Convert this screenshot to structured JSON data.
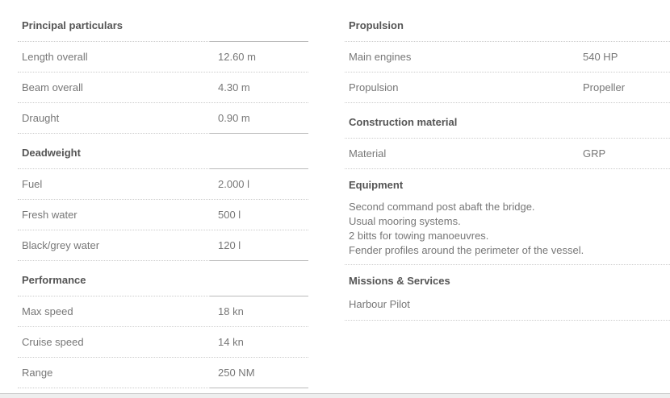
{
  "left": [
    {
      "title": "Principal particulars",
      "rows": [
        [
          "Length overall",
          "12.60 m"
        ],
        [
          "Beam overall",
          "4.30 m"
        ],
        [
          "Draught",
          "0.90 m"
        ]
      ]
    },
    {
      "title": "Deadweight",
      "rows": [
        [
          "Fuel",
          "2.000 l"
        ],
        [
          "Fresh water",
          "500 l"
        ],
        [
          "Black/grey water",
          "120 l"
        ]
      ]
    },
    {
      "title": "Performance",
      "rows": [
        [
          "Max speed",
          "18 kn"
        ],
        [
          "Cruise speed",
          "14 kn"
        ],
        [
          "Range",
          "250 NM"
        ]
      ]
    }
  ],
  "right": {
    "propulsion": {
      "title": "Propulsion",
      "rows": [
        [
          "Main engines",
          "540 HP"
        ],
        [
          "Propulsion",
          "Propeller"
        ]
      ]
    },
    "construction": {
      "title": "Construction material",
      "rows": [
        [
          "Material",
          "GRP"
        ]
      ]
    },
    "equipment": {
      "title": "Equipment",
      "lines": [
        "Second command post abaft the bridge.",
        "Usual mooring systems.",
        "2 bitts for towing manoeuvres.",
        "Fender profiles around the perimeter of the vessel."
      ]
    },
    "missions": {
      "title": "Missions & Services",
      "text": "Harbour Pilot"
    }
  }
}
